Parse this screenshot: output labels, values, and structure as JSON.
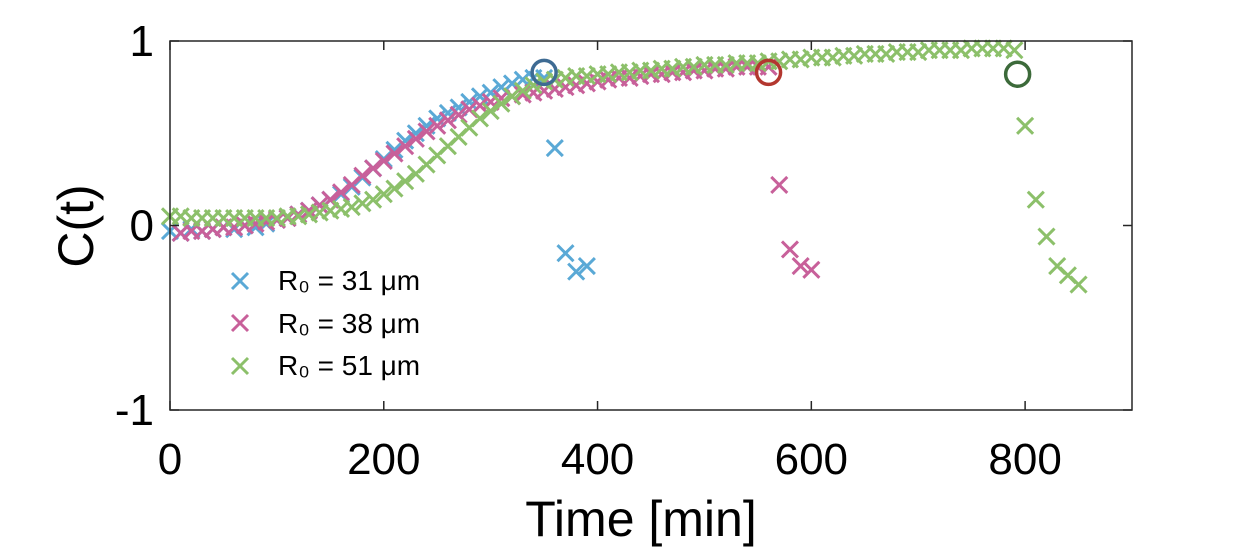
{
  "chart_data": {
    "type": "scatter",
    "title": "",
    "xlabel": "Time [min]",
    "ylabel": "C(t)",
    "xlim": [
      0,
      900
    ],
    "ylim": [
      -1,
      1
    ],
    "xticks": [
      0,
      200,
      400,
      600,
      800
    ],
    "yticks": [
      -1,
      0,
      1
    ],
    "xtick_labels": [
      "0",
      "200",
      "400",
      "600",
      "800"
    ],
    "ytick_labels": [
      "-1",
      "0",
      "1"
    ],
    "grid": false,
    "legend_position": "bottom-left",
    "series": [
      {
        "name": "R₀ = 31 μm",
        "color": "#5aa9d6",
        "marker": "x",
        "x": [
          0,
          10,
          20,
          30,
          40,
          50,
          60,
          70,
          80,
          90,
          100,
          110,
          120,
          130,
          140,
          150,
          160,
          170,
          180,
          190,
          200,
          210,
          220,
          230,
          240,
          250,
          260,
          270,
          280,
          290,
          300,
          310,
          320,
          330,
          340,
          350,
          360,
          370,
          380,
          390
        ],
        "y": [
          -0.03,
          -0.04,
          -0.02,
          -0.03,
          -0.02,
          -0.01,
          -0.02,
          0.0,
          -0.01,
          0.01,
          0.03,
          0.04,
          0.06,
          0.08,
          0.11,
          0.14,
          0.17,
          0.21,
          0.26,
          0.31,
          0.36,
          0.41,
          0.46,
          0.5,
          0.54,
          0.58,
          0.61,
          0.64,
          0.67,
          0.7,
          0.72,
          0.75,
          0.77,
          0.79,
          0.8,
          0.8,
          0.42,
          -0.15,
          -0.25,
          -0.22
        ]
      },
      {
        "name": "R₀ = 38 μm",
        "color": "#c8609a",
        "marker": "x",
        "x": [
          10,
          20,
          30,
          40,
          50,
          60,
          70,
          80,
          90,
          100,
          110,
          120,
          130,
          140,
          150,
          160,
          170,
          180,
          190,
          200,
          210,
          220,
          230,
          240,
          250,
          260,
          270,
          280,
          290,
          300,
          310,
          320,
          330,
          340,
          350,
          360,
          370,
          380,
          390,
          400,
          410,
          420,
          430,
          440,
          450,
          460,
          470,
          480,
          490,
          500,
          510,
          520,
          530,
          540,
          550,
          560,
          570,
          580,
          590,
          600
        ],
        "y": [
          -0.04,
          -0.03,
          -0.03,
          -0.02,
          -0.01,
          -0.01,
          0.0,
          0.01,
          0.02,
          0.03,
          0.04,
          0.06,
          0.08,
          0.11,
          0.14,
          0.18,
          0.22,
          0.27,
          0.31,
          0.35,
          0.39,
          0.43,
          0.47,
          0.51,
          0.54,
          0.57,
          0.6,
          0.63,
          0.65,
          0.67,
          0.69,
          0.7,
          0.71,
          0.72,
          0.73,
          0.74,
          0.75,
          0.76,
          0.77,
          0.78,
          0.79,
          0.8,
          0.8,
          0.81,
          0.82,
          0.82,
          0.83,
          0.83,
          0.84,
          0.84,
          0.85,
          0.85,
          0.86,
          0.86,
          0.86,
          0.86,
          0.22,
          -0.13,
          -0.22,
          -0.24
        ]
      },
      {
        "name": "R₀ = 51 μm",
        "color": "#8cc06a",
        "marker": "x",
        "x": [
          0,
          10,
          20,
          30,
          40,
          50,
          60,
          70,
          80,
          90,
          100,
          110,
          120,
          130,
          140,
          150,
          160,
          170,
          180,
          190,
          200,
          210,
          220,
          230,
          240,
          250,
          260,
          270,
          280,
          290,
          300,
          310,
          320,
          330,
          340,
          350,
          360,
          370,
          380,
          390,
          400,
          410,
          420,
          430,
          440,
          450,
          460,
          470,
          480,
          490,
          500,
          510,
          520,
          530,
          540,
          550,
          560,
          570,
          580,
          590,
          600,
          610,
          620,
          630,
          640,
          650,
          660,
          670,
          680,
          690,
          700,
          710,
          720,
          730,
          740,
          750,
          760,
          770,
          780,
          790,
          800,
          810,
          820,
          830,
          840,
          850
        ],
        "y": [
          0.05,
          0.05,
          0.04,
          0.04,
          0.04,
          0.04,
          0.04,
          0.04,
          0.04,
          0.04,
          0.04,
          0.05,
          0.05,
          0.06,
          0.07,
          0.08,
          0.09,
          0.1,
          0.12,
          0.14,
          0.17,
          0.2,
          0.24,
          0.28,
          0.33,
          0.38,
          0.43,
          0.48,
          0.53,
          0.58,
          0.62,
          0.66,
          0.7,
          0.73,
          0.76,
          0.78,
          0.79,
          0.8,
          0.81,
          0.81,
          0.82,
          0.82,
          0.83,
          0.83,
          0.84,
          0.84,
          0.85,
          0.85,
          0.86,
          0.86,
          0.87,
          0.87,
          0.87,
          0.88,
          0.88,
          0.88,
          0.89,
          0.89,
          0.9,
          0.9,
          0.91,
          0.91,
          0.91,
          0.92,
          0.92,
          0.93,
          0.93,
          0.93,
          0.94,
          0.94,
          0.94,
          0.95,
          0.95,
          0.95,
          0.95,
          0.96,
          0.96,
          0.96,
          0.96,
          0.95,
          0.54,
          0.14,
          -0.06,
          -0.22,
          -0.27,
          -0.32
        ]
      }
    ],
    "annotations": [
      {
        "name": "circle-31um",
        "x": 350,
        "y": 0.83,
        "color": "#3e6b93",
        "marker": "circle"
      },
      {
        "name": "circle-38um",
        "x": 560,
        "y": 0.83,
        "color": "#b3372f",
        "marker": "circle"
      },
      {
        "name": "circle-51um",
        "x": 793,
        "y": 0.82,
        "color": "#3c6a3a",
        "marker": "circle"
      }
    ]
  }
}
